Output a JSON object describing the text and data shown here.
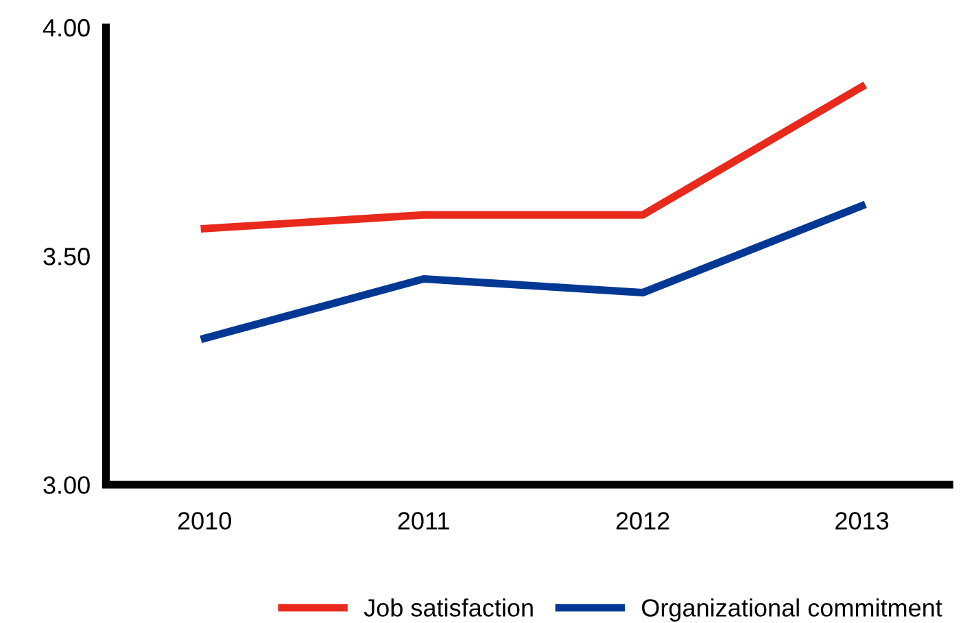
{
  "chart_data": {
    "type": "line",
    "categories": [
      "2010",
      "2011",
      "2012",
      "2013"
    ],
    "series": [
      {
        "name": "Job satisfaction",
        "color": "#e8291c",
        "values": [
          3.56,
          3.59,
          3.59,
          3.87
        ]
      },
      {
        "name": "Organizational commitment",
        "color": "#003893",
        "values": [
          3.32,
          3.45,
          3.42,
          3.61
        ]
      }
    ],
    "ylim": [
      3,
      4
    ],
    "yticks": [
      {
        "value": 3,
        "label": "3.00"
      },
      {
        "value": 3.5,
        "label": "3.50"
      },
      {
        "value": 4,
        "label": "4.00"
      }
    ],
    "grid": false,
    "legend": "bottom",
    "marker": "none",
    "line_style": "solid"
  }
}
